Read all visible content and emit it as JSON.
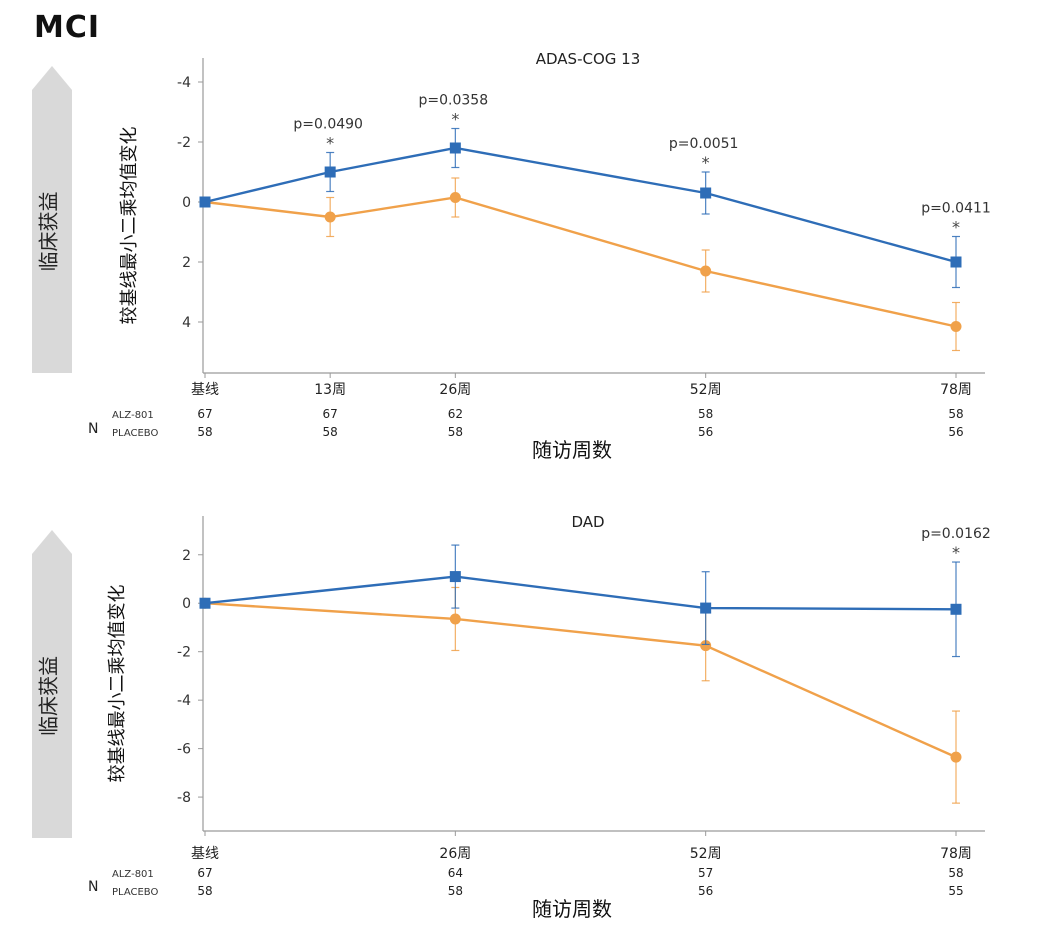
{
  "header": {
    "title": "MCI"
  },
  "colors": {
    "alz": "#2e6db7",
    "placebo": "#f0a14a",
    "arrow": "#d9d9d9",
    "axis": "#555555"
  },
  "chart_data": [
    {
      "type": "line",
      "title": "ADAS-COG 13",
      "side_label": "临床获益",
      "ylabel": "较基线最小二乘均值变化",
      "xlabel": "随访周数",
      "x": [
        0,
        13,
        26,
        52,
        78
      ],
      "x_tick_labels": [
        "基线",
        "13周",
        "26周",
        "52周",
        "78周"
      ],
      "ylim": [
        -4.8,
        5.7
      ],
      "y_ticks": [
        -4,
        -2,
        0,
        2,
        4
      ],
      "y_tick_labels": [
        "-4",
        "-2",
        "0",
        "2",
        "4"
      ],
      "y_inverted": true,
      "series": [
        {
          "name": "ALZ-801",
          "marker": "square",
          "values": [
            0,
            -1.0,
            -1.8,
            -0.3,
            2.0
          ],
          "error": [
            0.1,
            0.65,
            0.65,
            0.7,
            0.85
          ]
        },
        {
          "name": "PLACEBO",
          "marker": "circle",
          "values": [
            0,
            0.5,
            -0.15,
            2.3,
            4.15
          ],
          "error": [
            0.1,
            0.65,
            0.65,
            0.7,
            0.8
          ]
        }
      ],
      "annotations": [
        {
          "x": 13,
          "text": "p=0.0490",
          "star": "*"
        },
        {
          "x": 26,
          "text": "p=0.0358",
          "star": "*"
        },
        {
          "x": 52,
          "text": "p=0.0051",
          "star": "*"
        },
        {
          "x": 78,
          "text": "p=0.0411",
          "star": "*"
        }
      ],
      "n_table": {
        "label": "N",
        "rows": [
          {
            "name": "ALZ-801",
            "values": [
              "67",
              "67",
              "62",
              "58",
              "58"
            ]
          },
          {
            "name": "PLACEBO",
            "values": [
              "58",
              "58",
              "58",
              "56",
              "56"
            ]
          }
        ]
      }
    },
    {
      "type": "line",
      "title": "DAD",
      "side_label": "临床获益",
      "ylabel": "较基线最小二乘均值变化",
      "xlabel": "随访周数",
      "x": [
        0,
        26,
        52,
        78
      ],
      "x_tick_labels": [
        "基线",
        "26周",
        "52周",
        "78周"
      ],
      "ylim": [
        -9.4,
        3.6
      ],
      "y_ticks": [
        2,
        0,
        -2,
        -4,
        -6,
        -8
      ],
      "y_tick_labels": [
        "2",
        "0",
        "-2",
        "-4",
        "-6",
        "-8"
      ],
      "y_inverted": false,
      "series": [
        {
          "name": "ALZ-801",
          "marker": "square",
          "values": [
            0,
            1.1,
            -0.2,
            -0.25
          ],
          "error": [
            0.1,
            1.3,
            1.5,
            1.95
          ]
        },
        {
          "name": "PLACEBO",
          "marker": "circle",
          "values": [
            0,
            -0.65,
            -1.75,
            -6.35
          ],
          "error": [
            0.1,
            1.3,
            1.45,
            1.9
          ]
        }
      ],
      "annotations": [
        {
          "x": 78,
          "text": "p=0.0162",
          "star": "*"
        }
      ],
      "n_table": {
        "label": "N",
        "rows": [
          {
            "name": "ALZ-801",
            "values": [
              "67",
              "64",
              "57",
              "58"
            ]
          },
          {
            "name": "PLACEBO",
            "values": [
              "58",
              "58",
              "56",
              "55"
            ]
          }
        ]
      }
    }
  ]
}
